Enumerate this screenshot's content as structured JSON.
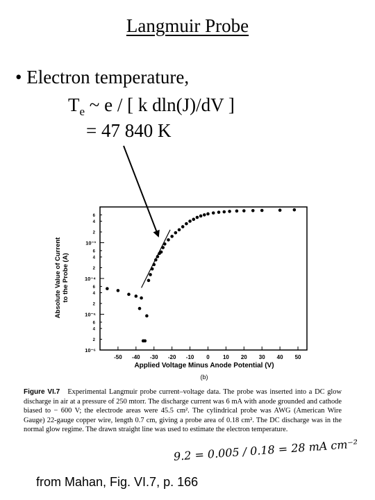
{
  "slide": {
    "title": "Langmuir Probe",
    "bullet_marker": "•",
    "bullet_text": "Electron temperature,",
    "formula_lhs": "T",
    "formula_sub": "e",
    "formula_rhs": " ~ e / [ k dln(J)/dV ]",
    "result": "= 47 840 K",
    "source": "from Mahan, Fig. VI.7, p. 166"
  },
  "figure": {
    "caption_label": "Figure VI.7",
    "caption_text": "Experimental Langmuir probe current–voltage data. The probe was inserted into a DC glow discharge in air at a pressure of 250 mtorr. The discharge current was 6 mA with anode grounded and cathode biased to − 600 V; the electrode areas were 45.5 cm². The cylindrical probe was AWG (American Wire Gauge) 22-gauge copper wire, length 0.7 cm, giving a probe area of 0.18 cm². The DC discharge was in the normal glow regime. The drawn straight line was used to estimate the electron temperature.",
    "handwritten_note": "9.2 = 0.005 / 0.18 = 28 mA cm⁻²",
    "panel_label": "(b)"
  },
  "chart_data": {
    "type": "scatter",
    "xlabel": "Applied Voltage Minus Anode Potential (V)",
    "ylabel_line1": "Absolute Value of Current",
    "ylabel_line2": "to the Probe (A)",
    "xlim": [
      -60,
      55
    ],
    "ylim": [
      1e-06,
      0.01
    ],
    "yscale": "log",
    "x_ticks": [
      -50,
      -40,
      -30,
      -20,
      -10,
      0,
      10,
      20,
      30,
      40,
      50
    ],
    "x_tick_labels": [
      "-50",
      "-40",
      "-30",
      "-20",
      "-10",
      "0",
      "10",
      "20",
      "30",
      "40",
      "50"
    ],
    "y_decades": [
      1e-06,
      1e-05,
      0.0001,
      0.001
    ],
    "y_decade_labels": [
      "10⁻⁶",
      "10⁻⁵",
      "10⁻⁴",
      "10⁻³"
    ],
    "y_minor_label_values": [
      2e-06,
      4e-06,
      6e-06,
      2e-05,
      4e-05,
      6e-05,
      0.0002,
      0.0004,
      0.0006,
      0.002,
      0.004,
      0.006
    ],
    "y_minor_labels": [
      "2",
      "4",
      "6",
      "2",
      "4",
      "6",
      "2",
      "4",
      "6",
      "2",
      "4",
      "6"
    ],
    "grid": false,
    "series": [
      {
        "x": [
          -56,
          -50,
          -44,
          -40,
          -38,
          -37,
          -36,
          -35,
          -34,
          -33,
          -32,
          -31,
          -30,
          -29,
          -28,
          -27,
          -26,
          -25,
          -24,
          -22,
          -20,
          -18,
          -16,
          -14,
          -12,
          -10,
          -8,
          -6,
          -4,
          -2,
          0,
          3,
          6,
          9,
          12,
          16,
          20,
          25,
          30,
          40,
          48
        ],
        "y": [
          5.2e-05,
          4.6e-05,
          3.6e-05,
          3.2e-05,
          1.45e-05,
          2.85e-05,
          1.8e-06,
          1.8e-06,
          9e-06,
          8.8e-05,
          0.000128,
          0.000185,
          0.000245,
          0.00033,
          0.00041,
          0.0005,
          0.00055,
          0.00073,
          0.00092,
          0.0012,
          0.0015,
          0.0019,
          0.0023,
          0.0028,
          0.0034,
          0.004,
          0.0045,
          0.0051,
          0.0056,
          0.006,
          0.0064,
          0.0068,
          0.0071,
          0.0073,
          0.0075,
          0.0077,
          0.0078,
          0.0079,
          0.008,
          0.0081,
          0.0083
        ]
      }
    ],
    "fit_line": {
      "x": [
        -37,
        -21
      ],
      "y": [
        5.5e-05,
        0.0023
      ]
    }
  }
}
